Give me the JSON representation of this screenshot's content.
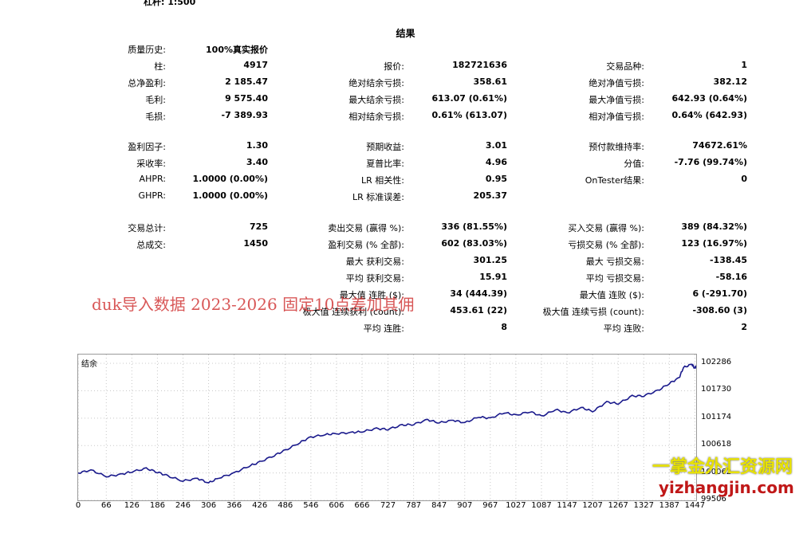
{
  "leverage": "杠杆: 1:500",
  "title": "结果",
  "stats": {
    "history_quality": {
      "label": "质量历史:",
      "value": "100%真实报价"
    },
    "bars": {
      "label": "柱:",
      "value": "4917"
    },
    "net_profit": {
      "label": "总净盈利:",
      "value": "2 185.47"
    },
    "gross_profit": {
      "label": "毛利:",
      "value": "9 575.40"
    },
    "gross_loss": {
      "label": "毛损:",
      "value": "-7 389.93"
    },
    "profit_factor": {
      "label": "盈利因子:",
      "value": "1.30"
    },
    "recovery": {
      "label": "采收率:",
      "value": "3.40"
    },
    "ahpr": {
      "label": "AHPR:",
      "value": "1.0000 (0.00%)"
    },
    "ghpr": {
      "label": "GHPR:",
      "value": "1.0000 (0.00%)"
    },
    "total_trades": {
      "label": "交易总计:",
      "value": "725"
    },
    "total_deals": {
      "label": "总成交:",
      "value": "1450"
    },
    "ticks": {
      "label": "报价:",
      "value": "182721636"
    },
    "abs_balance_dd": {
      "label": "绝对结余亏损:",
      "value": "358.61"
    },
    "max_balance_dd": {
      "label": "最大结余亏损:",
      "value": "613.07 (0.61%)"
    },
    "rel_balance_dd": {
      "label": "相对结余亏损:",
      "value": "0.61% (613.07)"
    },
    "expected_payoff": {
      "label": "预期收益:",
      "value": "3.01"
    },
    "sharpe": {
      "label": "夏普比率:",
      "value": "4.96"
    },
    "lr_corr": {
      "label": "LR 相关性:",
      "value": "0.95"
    },
    "lr_err": {
      "label": "LR 标准误差:",
      "value": "205.37"
    },
    "short_trades": {
      "label": "卖出交易 (赢得 %):",
      "value": "336 (81.55%)"
    },
    "profit_trades": {
      "label": "盈利交易 (% 全部):",
      "value": "602 (83.03%)"
    },
    "largest_profit": {
      "label": "最大 获利交易:",
      "value": "301.25"
    },
    "avg_profit": {
      "label": "平均 获利交易:",
      "value": "15.91"
    },
    "max_consec_wins": {
      "label": "最大值 连胜 ($):",
      "value": "34 (444.39)"
    },
    "max_consec_profit": {
      "label": "极大值 连续获利 (count):",
      "value": "453.61 (22)"
    },
    "avg_consec_wins": {
      "label": "平均 连胜:",
      "value": "8"
    },
    "symbols": {
      "label": "交易品种:",
      "value": "1"
    },
    "abs_equity_dd": {
      "label": "绝对净值亏损:",
      "value": "382.12"
    },
    "max_equity_dd": {
      "label": "最大净值亏损:",
      "value": "642.93 (0.64%)"
    },
    "rel_equity_dd": {
      "label": "相对净值亏损:",
      "value": "0.64% (642.93)"
    },
    "margin_level": {
      "label": "预付款维持率:",
      "value": "74672.61%"
    },
    "z_score": {
      "label": "分值:",
      "value": "-7.76 (99.74%)"
    },
    "ontester": {
      "label": "OnTester结果:",
      "value": "0"
    },
    "long_trades": {
      "label": "买入交易 (赢得 %):",
      "value": "389 (84.32%)"
    },
    "loss_trades": {
      "label": "亏损交易 (% 全部):",
      "value": "123 (16.97%)"
    },
    "largest_loss": {
      "label": "最大 亏损交易:",
      "value": "-138.45"
    },
    "avg_loss": {
      "label": "平均 亏损交易:",
      "value": "-58.16"
    },
    "max_consec_losses": {
      "label": "最大值 连败 ($):",
      "value": "6 (-291.70)"
    },
    "max_consec_loss": {
      "label": "极大值 连续亏损 (count):",
      "value": "-308.60 (3)"
    },
    "avg_consec_losses": {
      "label": "平均 连败:",
      "value": "2"
    }
  },
  "watermark": "duk导入数据 2023-2026 固定10点差加其佣",
  "site_watermark_cn": "一掌金外汇资源网",
  "site_watermark_url": "yizhangjin.com",
  "chart_data": {
    "type": "line",
    "title": "结余",
    "x_ticks": [
      "0",
      "66",
      "126",
      "186",
      "246",
      "306",
      "366",
      "426",
      "486",
      "546",
      "606",
      "666",
      "727",
      "787",
      "847",
      "907",
      "967",
      "1027",
      "1087",
      "1147",
      "1207",
      "1267",
      "1327",
      "1387",
      "1447"
    ],
    "y_ticks": [
      "102286",
      "101730",
      "101174",
      "100618",
      "100062",
      "99506"
    ],
    "ylim": [
      99506,
      102400
    ],
    "xlim": [
      0,
      1450
    ],
    "series": [
      {
        "color": "#1a1a8c",
        "x": [
          0,
          30,
          66,
          100,
          126,
          160,
          186,
          210,
          246,
          280,
          306,
          330,
          366,
          400,
          426,
          460,
          486,
          520,
          546,
          580,
          606,
          640,
          666,
          700,
          727,
          760,
          787,
          820,
          847,
          880,
          907,
          940,
          967,
          1000,
          1027,
          1060,
          1087,
          1120,
          1147,
          1180,
          1207,
          1240,
          1267,
          1300,
          1327,
          1360,
          1387,
          1410,
          1420,
          1440,
          1447,
          1450
        ],
        "y": [
          100060,
          100120,
          99990,
          100030,
          100090,
          100150,
          100080,
          100000,
          99900,
          99950,
          99860,
          99960,
          100060,
          100200,
          100280,
          100420,
          100520,
          100680,
          100790,
          100840,
          100860,
          100880,
          100900,
          100960,
          100950,
          101030,
          101050,
          101140,
          101080,
          101130,
          101080,
          101200,
          101170,
          101290,
          101230,
          101310,
          101210,
          101350,
          101280,
          101390,
          101310,
          101500,
          101470,
          101620,
          101630,
          101730,
          101880,
          101990,
          102200,
          102270,
          102180,
          102240
        ]
      }
    ]
  }
}
